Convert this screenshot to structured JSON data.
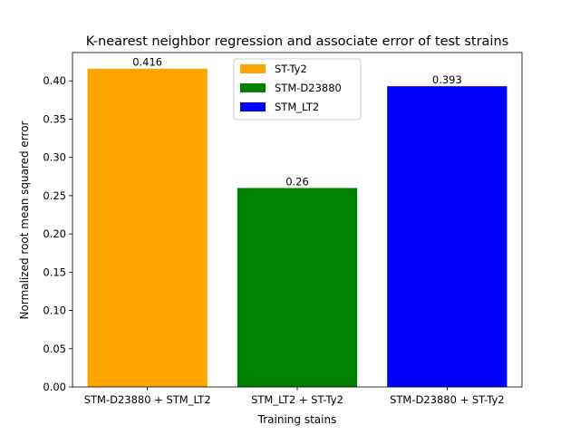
{
  "chart_data": {
    "type": "bar",
    "title": "K-nearest neighbor regression and associate error of test strains",
    "xlabel": "Training stains",
    "ylabel": "Normalized root mean squared error",
    "categories": [
      "STM-D23880 + STM_LT2",
      "STM_LT2 + ST-Ty2",
      "STM-D23880 + ST-Ty2"
    ],
    "values": [
      0.416,
      0.26,
      0.393
    ],
    "value_labels": [
      "0.416",
      "0.26",
      "0.393"
    ],
    "colors": [
      "#ffa500",
      "#008000",
      "#0000ff"
    ],
    "ylim": [
      0,
      0.437
    ],
    "yticks": [
      0.0,
      0.05,
      0.1,
      0.15,
      0.2,
      0.25,
      0.3,
      0.35,
      0.4
    ],
    "ytick_labels": [
      "0.00",
      "0.05",
      "0.10",
      "0.15",
      "0.20",
      "0.25",
      "0.30",
      "0.35",
      "0.40"
    ],
    "grid": false,
    "legend": {
      "placement": "upper-center",
      "entries": [
        {
          "label": "ST-Ty2",
          "color": "#ffa500"
        },
        {
          "label": "STM-D23880",
          "color": "#008000"
        },
        {
          "label": "STM_LT2",
          "color": "#0000ff"
        }
      ]
    }
  }
}
